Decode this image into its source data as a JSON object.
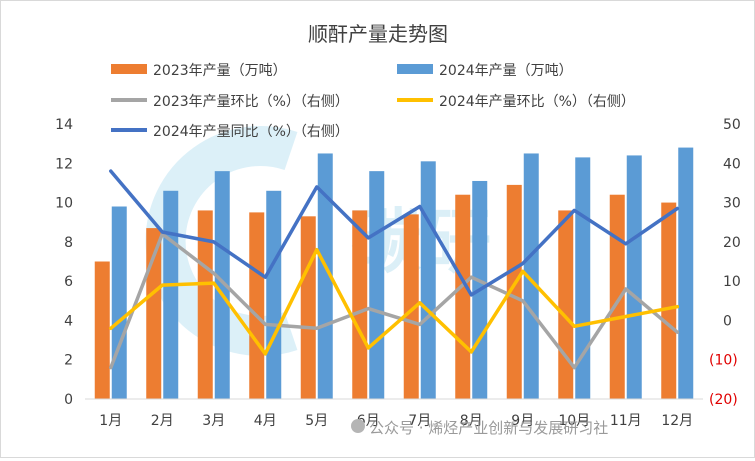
{
  "chart_data": {
    "type": "bar",
    "title": "顺酐产量走势图",
    "categories": [
      "1月",
      "2月",
      "3月",
      "4月",
      "5月",
      "6月",
      "7月",
      "8月",
      "9月",
      "10月",
      "11月",
      "12月"
    ],
    "ylim": [
      0,
      14
    ],
    "y_ticks": [
      "0",
      "2",
      "4",
      "6",
      "8",
      "10",
      "12",
      "14"
    ],
    "y2lim": [
      -20,
      50
    ],
    "y2_ticks": [
      "(20)",
      "(10)",
      "0",
      "10",
      "20",
      "30",
      "40",
      "50"
    ],
    "grid": false,
    "legend": "top",
    "series": [
      {
        "name": "2023年产量（万吨）",
        "type": "bar",
        "axis": "left",
        "color": "#ED7D31",
        "values": [
          7.0,
          8.7,
          9.6,
          9.5,
          9.3,
          9.6,
          9.4,
          10.4,
          10.9,
          9.6,
          10.4,
          10.0
        ]
      },
      {
        "name": "2024年产量（万吨）",
        "type": "bar",
        "axis": "left",
        "color": "#5B9BD5",
        "values": [
          9.8,
          10.6,
          11.6,
          10.6,
          12.5,
          11.6,
          12.1,
          11.1,
          12.5,
          12.3,
          12.4,
          12.8
        ]
      },
      {
        "name": "2023年产量环比（%）（右侧）",
        "type": "line",
        "axis": "right",
        "color": "#A5A5A5",
        "values": [
          -12,
          22,
          12,
          -1,
          -2,
          3,
          -1,
          11,
          5,
          -12,
          8,
          -3
        ]
      },
      {
        "name": "2024年产量环比（%）（右侧）",
        "type": "line",
        "axis": "right",
        "color": "#FFC000",
        "values": [
          -2,
          9,
          9.5,
          -8.5,
          18,
          -7,
          4.5,
          -8,
          12.5,
          -1.5,
          1,
          3.5
        ]
      },
      {
        "name": "2024年产量同比（%）（右侧）",
        "type": "line",
        "axis": "right",
        "color": "#4472C4",
        "values": [
          38,
          22.5,
          20,
          11,
          34,
          21,
          29,
          6.5,
          14.5,
          28,
          19.5,
          28.5
        ]
      }
    ]
  },
  "watermark": {
    "text": "公众号 · 烯烃产业创新与发展研习社",
    "logo_text": "碳研",
    "color": "#a9d8ec"
  }
}
